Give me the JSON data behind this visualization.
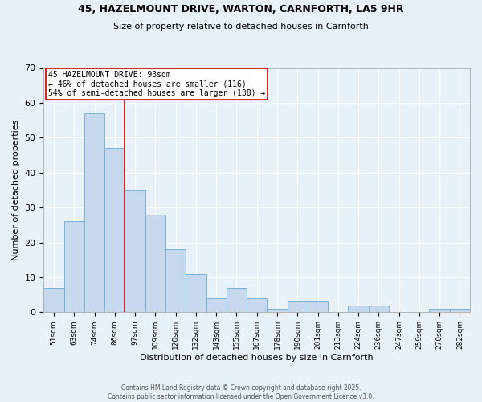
{
  "title_line1": "45, HAZELMOUNT DRIVE, WARTON, CARNFORTH, LA5 9HR",
  "title_line2": "Size of property relative to detached houses in Carnforth",
  "xlabel": "Distribution of detached houses by size in Carnforth",
  "ylabel": "Number of detached properties",
  "categories": [
    "51sqm",
    "63sqm",
    "74sqm",
    "86sqm",
    "97sqm",
    "109sqm",
    "120sqm",
    "132sqm",
    "143sqm",
    "155sqm",
    "167sqm",
    "178sqm",
    "190sqm",
    "201sqm",
    "213sqm",
    "224sqm",
    "236sqm",
    "247sqm",
    "259sqm",
    "270sqm",
    "282sqm"
  ],
  "values": [
    7,
    26,
    57,
    47,
    35,
    28,
    18,
    11,
    4,
    7,
    4,
    1,
    3,
    3,
    0,
    2,
    2,
    0,
    0,
    1,
    1
  ],
  "bar_color": "#c5d8ee",
  "bar_edge_color": "#7ab0d8",
  "vline_x": 3.5,
  "vline_color": "#cc0000",
  "annotation_text": "45 HAZELMOUNT DRIVE: 93sqm\n← 46% of detached houses are smaller (116)\n54% of semi-detached houses are larger (138) →",
  "annotation_box_color": "white",
  "annotation_box_edge_color": "#cc0000",
  "ylim": [
    0,
    70
  ],
  "yticks": [
    0,
    10,
    20,
    30,
    40,
    50,
    60,
    70
  ],
  "background_color": "#e8f0f8",
  "grid_color": "white",
  "footer_line1": "Contains HM Land Registry data © Crown copyright and database right 2025.",
  "footer_line2": "Contains public sector information licensed under the Open Government Licence v3.0."
}
